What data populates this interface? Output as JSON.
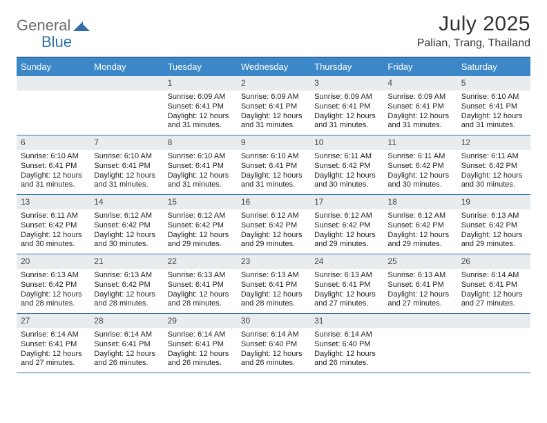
{
  "brand": {
    "word1": "General",
    "word2": "Blue",
    "word1_color": "#6b6b6b",
    "word2_color": "#2f6fa8"
  },
  "title": {
    "month_year": "July 2025",
    "location": "Palian, Trang, Thailand"
  },
  "colors": {
    "header_bg": "#3b87c8",
    "header_text": "#ffffff",
    "rule": "#2f6fa8",
    "daynum_bg": "#e9ecef",
    "text": "#222222",
    "page_bg": "#ffffff"
  },
  "day_headers": [
    "Sunday",
    "Monday",
    "Tuesday",
    "Wednesday",
    "Thursday",
    "Friday",
    "Saturday"
  ],
  "weeks": [
    [
      null,
      null,
      {
        "n": "1",
        "sunrise": "6:09 AM",
        "sunset": "6:41 PM",
        "daylight": "12 hours and 31 minutes."
      },
      {
        "n": "2",
        "sunrise": "6:09 AM",
        "sunset": "6:41 PM",
        "daylight": "12 hours and 31 minutes."
      },
      {
        "n": "3",
        "sunrise": "6:09 AM",
        "sunset": "6:41 PM",
        "daylight": "12 hours and 31 minutes."
      },
      {
        "n": "4",
        "sunrise": "6:09 AM",
        "sunset": "6:41 PM",
        "daylight": "12 hours and 31 minutes."
      },
      {
        "n": "5",
        "sunrise": "6:10 AM",
        "sunset": "6:41 PM",
        "daylight": "12 hours and 31 minutes."
      }
    ],
    [
      {
        "n": "6",
        "sunrise": "6:10 AM",
        "sunset": "6:41 PM",
        "daylight": "12 hours and 31 minutes."
      },
      {
        "n": "7",
        "sunrise": "6:10 AM",
        "sunset": "6:41 PM",
        "daylight": "12 hours and 31 minutes."
      },
      {
        "n": "8",
        "sunrise": "6:10 AM",
        "sunset": "6:41 PM",
        "daylight": "12 hours and 31 minutes."
      },
      {
        "n": "9",
        "sunrise": "6:10 AM",
        "sunset": "6:41 PM",
        "daylight": "12 hours and 31 minutes."
      },
      {
        "n": "10",
        "sunrise": "6:11 AM",
        "sunset": "6:42 PM",
        "daylight": "12 hours and 30 minutes."
      },
      {
        "n": "11",
        "sunrise": "6:11 AM",
        "sunset": "6:42 PM",
        "daylight": "12 hours and 30 minutes."
      },
      {
        "n": "12",
        "sunrise": "6:11 AM",
        "sunset": "6:42 PM",
        "daylight": "12 hours and 30 minutes."
      }
    ],
    [
      {
        "n": "13",
        "sunrise": "6:11 AM",
        "sunset": "6:42 PM",
        "daylight": "12 hours and 30 minutes."
      },
      {
        "n": "14",
        "sunrise": "6:12 AM",
        "sunset": "6:42 PM",
        "daylight": "12 hours and 30 minutes."
      },
      {
        "n": "15",
        "sunrise": "6:12 AM",
        "sunset": "6:42 PM",
        "daylight": "12 hours and 29 minutes."
      },
      {
        "n": "16",
        "sunrise": "6:12 AM",
        "sunset": "6:42 PM",
        "daylight": "12 hours and 29 minutes."
      },
      {
        "n": "17",
        "sunrise": "6:12 AM",
        "sunset": "6:42 PM",
        "daylight": "12 hours and 29 minutes."
      },
      {
        "n": "18",
        "sunrise": "6:12 AM",
        "sunset": "6:42 PM",
        "daylight": "12 hours and 29 minutes."
      },
      {
        "n": "19",
        "sunrise": "6:13 AM",
        "sunset": "6:42 PM",
        "daylight": "12 hours and 29 minutes."
      }
    ],
    [
      {
        "n": "20",
        "sunrise": "6:13 AM",
        "sunset": "6:42 PM",
        "daylight": "12 hours and 28 minutes."
      },
      {
        "n": "21",
        "sunrise": "6:13 AM",
        "sunset": "6:42 PM",
        "daylight": "12 hours and 28 minutes."
      },
      {
        "n": "22",
        "sunrise": "6:13 AM",
        "sunset": "6:41 PM",
        "daylight": "12 hours and 28 minutes."
      },
      {
        "n": "23",
        "sunrise": "6:13 AM",
        "sunset": "6:41 PM",
        "daylight": "12 hours and 28 minutes."
      },
      {
        "n": "24",
        "sunrise": "6:13 AM",
        "sunset": "6:41 PM",
        "daylight": "12 hours and 27 minutes."
      },
      {
        "n": "25",
        "sunrise": "6:13 AM",
        "sunset": "6:41 PM",
        "daylight": "12 hours and 27 minutes."
      },
      {
        "n": "26",
        "sunrise": "6:14 AM",
        "sunset": "6:41 PM",
        "daylight": "12 hours and 27 minutes."
      }
    ],
    [
      {
        "n": "27",
        "sunrise": "6:14 AM",
        "sunset": "6:41 PM",
        "daylight": "12 hours and 27 minutes."
      },
      {
        "n": "28",
        "sunrise": "6:14 AM",
        "sunset": "6:41 PM",
        "daylight": "12 hours and 26 minutes."
      },
      {
        "n": "29",
        "sunrise": "6:14 AM",
        "sunset": "6:41 PM",
        "daylight": "12 hours and 26 minutes."
      },
      {
        "n": "30",
        "sunrise": "6:14 AM",
        "sunset": "6:40 PM",
        "daylight": "12 hours and 26 minutes."
      },
      {
        "n": "31",
        "sunrise": "6:14 AM",
        "sunset": "6:40 PM",
        "daylight": "12 hours and 26 minutes."
      },
      null,
      null
    ]
  ],
  "labels": {
    "sunrise": "Sunrise:",
    "sunset": "Sunset:",
    "daylight": "Daylight:"
  }
}
